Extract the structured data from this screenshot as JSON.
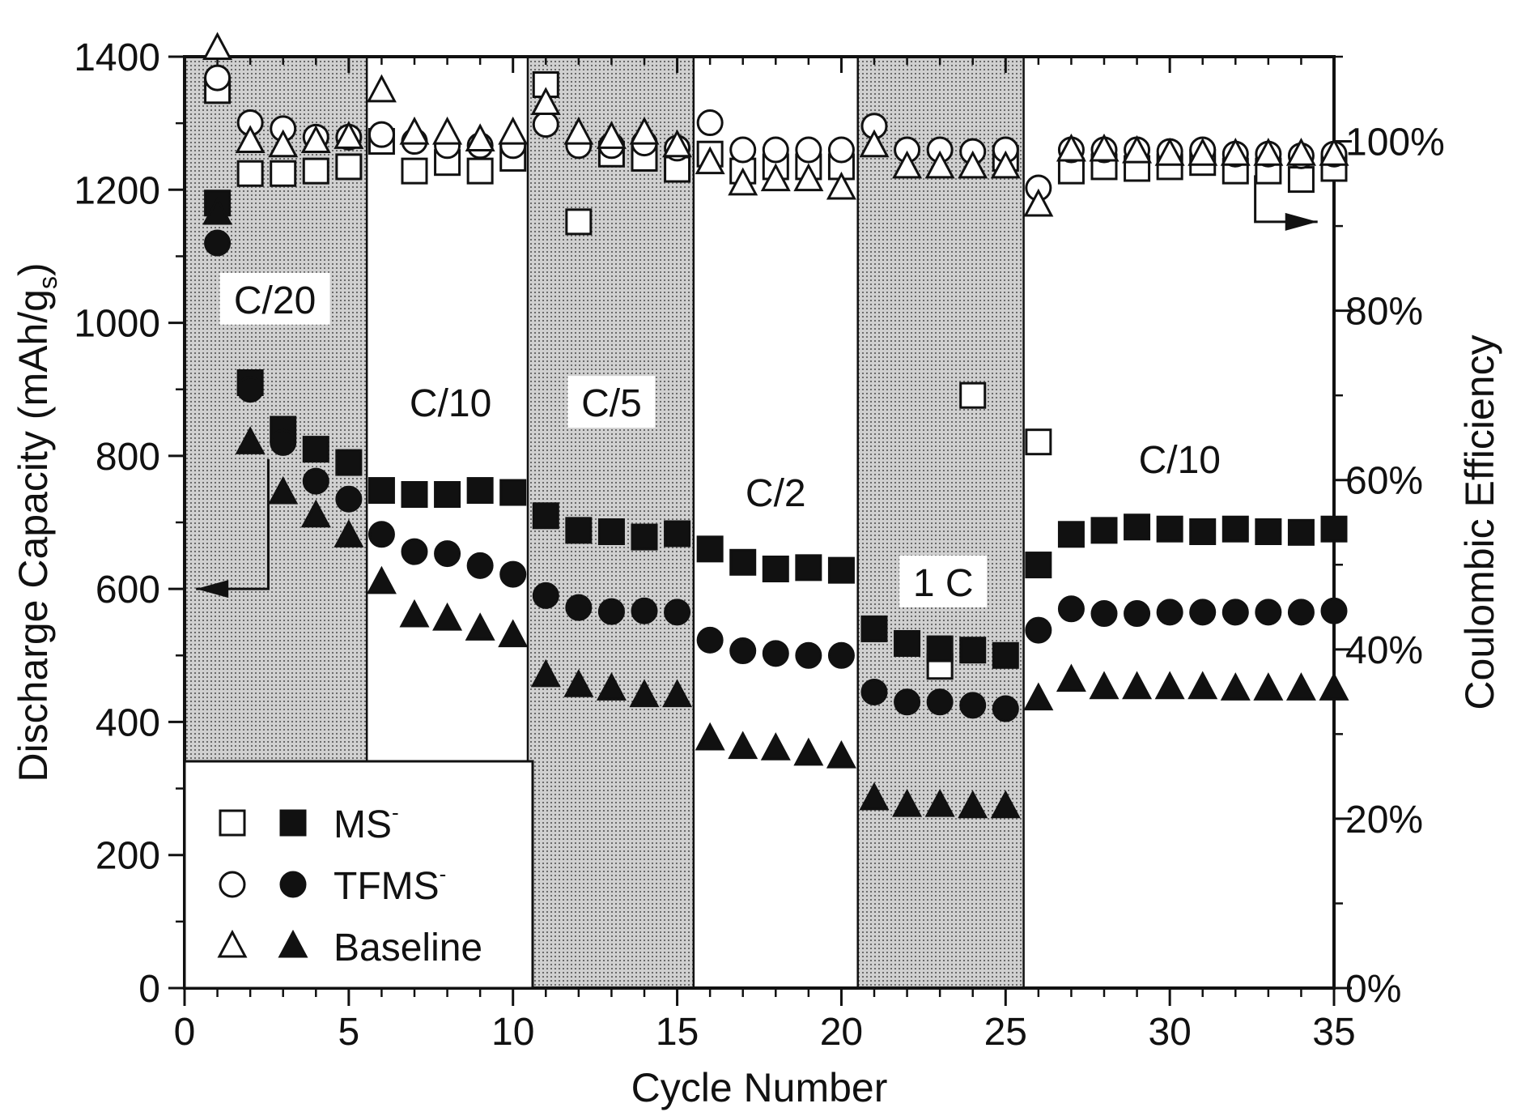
{
  "chart_data": {
    "type": "scatter",
    "title": "",
    "xlabel": "Cycle Number",
    "ylabel": "Discharge Capacity (mAh/g_s)",
    "ylabel_parts": {
      "main": "Discharge Capacity (mAh/g",
      "sub": "s",
      "end": ")"
    },
    "y2label": "Coulombic Efficiency",
    "xlim": [
      0,
      35
    ],
    "ylim": [
      0,
      1400
    ],
    "y2lim": [
      0,
      110
    ],
    "xticks": [
      0,
      5,
      10,
      15,
      20,
      25,
      30,
      35
    ],
    "yticks": [
      0,
      200,
      400,
      600,
      800,
      1000,
      1200,
      1400
    ],
    "y2ticks": [
      0,
      20,
      40,
      60,
      80,
      100
    ],
    "xtick_labels": [
      "0",
      "5",
      "10",
      "15",
      "20",
      "25",
      "30",
      "35"
    ],
    "ytick_labels": [
      "0",
      "200",
      "400",
      "600",
      "800",
      "1000",
      "1200",
      "1400"
    ],
    "y2tick_labels": [
      "0%",
      "20%",
      "40%",
      "60%",
      "80%",
      "100%"
    ],
    "rate_regions": [
      {
        "label": "C/20",
        "x0": 0,
        "x1": 5.55,
        "shaded": true,
        "label_x": 2.75,
        "label_y": 1035
      },
      {
        "label": "C/10",
        "x0": 5.55,
        "x1": 10.45,
        "shaded": false,
        "label_x": 8.1,
        "label_y": 880
      },
      {
        "label": "C/5",
        "x0": 10.45,
        "x1": 15.5,
        "shaded": true,
        "label_x": 13,
        "label_y": 880
      },
      {
        "label": "C/2",
        "x0": 15.5,
        "x1": 20.5,
        "shaded": false,
        "label_x": 18,
        "label_y": 745
      },
      {
        "label": "1 C",
        "x0": 20.5,
        "x1": 25.55,
        "shaded": true,
        "label_x": 23.1,
        "label_y": 610
      },
      {
        "label": "C/10",
        "x0": 25.55,
        "x1": 35,
        "shaded": false,
        "label_x": 30.3,
        "label_y": 795
      }
    ],
    "series": [
      {
        "name": "MS",
        "superscript": "-",
        "marker": "square",
        "capacity": {
          "x": [
            1,
            2,
            3,
            4,
            5,
            6,
            7,
            8,
            9,
            10,
            11,
            12,
            13,
            14,
            15,
            16,
            17,
            18,
            19,
            20,
            21,
            22,
            23,
            24,
            25,
            26,
            27,
            28,
            29,
            30,
            31,
            32,
            33,
            34,
            35
          ],
          "y": [
            1180,
            910,
            840,
            810,
            790,
            748,
            742,
            742,
            748,
            745,
            710,
            688,
            686,
            678,
            683,
            660,
            640,
            630,
            632,
            628,
            540,
            518,
            510,
            508,
            500,
            636,
            682,
            688,
            693,
            690,
            686,
            690,
            686,
            685,
            690
          ]
        },
        "efficiency": {
          "x": [
            1,
            2,
            3,
            4,
            5,
            6,
            7,
            8,
            9,
            10,
            11,
            12,
            13,
            14,
            15,
            16,
            17,
            18,
            19,
            20,
            23,
            24,
            25,
            26,
            27,
            28,
            29,
            30,
            31,
            32,
            33,
            34,
            35
          ],
          "y": [
            106,
            96.2,
            96.2,
            96.5,
            97,
            100,
            96.5,
            97.5,
            96.5,
            98,
            106.7,
            90.5,
            98.5,
            98,
            96.7,
            98.5,
            96.5,
            97,
            97,
            97,
            38,
            70,
            98,
            64.5,
            96.5,
            97,
            96.8,
            97,
            97.5,
            96.5,
            96.5,
            95.5,
            96.8
          ]
        }
      },
      {
        "name": "TFMS",
        "superscript": "-",
        "marker": "circle",
        "capacity": {
          "x": [
            1,
            2,
            3,
            4,
            5,
            6,
            7,
            8,
            9,
            10,
            11,
            12,
            13,
            14,
            15,
            16,
            17,
            18,
            19,
            20,
            21,
            22,
            23,
            24,
            25,
            26,
            27,
            28,
            29,
            30,
            31,
            32,
            33,
            34,
            35
          ],
          "y": [
            1120,
            900,
            820,
            762,
            735,
            682,
            656,
            653,
            635,
            622,
            590,
            572,
            566,
            567,
            565,
            523,
            507,
            503,
            500,
            500,
            445,
            430,
            430,
            425,
            420,
            538,
            570,
            563,
            563,
            565,
            565,
            565,
            565,
            565,
            567
          ]
        },
        "efficiency": {
          "x": [
            1,
            2,
            3,
            4,
            5,
            6,
            7,
            8,
            9,
            10,
            11,
            12,
            13,
            14,
            15,
            16,
            17,
            18,
            19,
            20,
            21,
            22,
            23,
            24,
            25,
            26,
            27,
            28,
            29,
            30,
            31,
            32,
            33,
            34,
            35
          ],
          "y": [
            107.5,
            102.2,
            101.5,
            100.5,
            100.5,
            100.8,
            100,
            99.5,
            99.5,
            99.5,
            102,
            99.5,
            99.5,
            99.8,
            99.2,
            102.2,
            99,
            99,
            99,
            99,
            101.8,
            99,
            99,
            98.8,
            99,
            94.5,
            99,
            99,
            99,
            98.8,
            99,
            98.5,
            98.5,
            98.3,
            98.5
          ]
        }
      },
      {
        "name": "Baseline",
        "superscript": "",
        "marker": "triangle",
        "capacity": {
          "x": [
            1,
            2,
            3,
            4,
            5,
            6,
            7,
            8,
            9,
            10,
            11,
            12,
            13,
            14,
            15,
            16,
            17,
            18,
            19,
            20,
            21,
            22,
            23,
            24,
            25,
            26,
            27,
            28,
            29,
            30,
            31,
            32,
            33,
            34,
            35
          ],
          "y": [
            1165,
            820,
            745,
            710,
            680,
            610,
            560,
            555,
            540,
            530,
            470,
            455,
            450,
            440,
            440,
            375,
            362,
            360,
            352,
            348,
            285,
            275,
            275,
            273,
            273,
            435,
            463,
            452,
            452,
            452,
            452,
            450,
            450,
            450,
            450
          ]
        },
        "efficiency": {
          "x": [
            1,
            2,
            3,
            4,
            5,
            6,
            7,
            8,
            9,
            10,
            11,
            12,
            13,
            14,
            15,
            16,
            17,
            18,
            19,
            20,
            21,
            22,
            23,
            24,
            25,
            26,
            27,
            28,
            29,
            30,
            31,
            32,
            33,
            34,
            35
          ],
          "y": [
            111,
            100,
            99.5,
            100,
            100.5,
            106,
            101,
            101,
            100.2,
            101,
            104.5,
            101,
            100.5,
            101,
            99.5,
            97.5,
            95,
            95.5,
            95.5,
            94.5,
            99.5,
            97,
            97,
            97,
            97,
            92.5,
            99,
            99,
            98.8,
            98.5,
            98.5,
            98.5,
            98.5,
            98.5,
            98.5
          ]
        }
      }
    ],
    "annotations": [
      {
        "text": "arrow pointing to left axis (capacity)",
        "points": [
          [
            2.55,
            795
          ],
          [
            2.55,
            600
          ],
          [
            0.35,
            600
          ]
        ]
      },
      {
        "text": "arrow pointing to right axis (efficiency)",
        "points": [
          [
            32.6,
            96
          ],
          [
            32.6,
            90.5
          ],
          [
            34.5,
            90.5
          ]
        ]
      }
    ],
    "legend": {
      "position": "bottom-left",
      "entries": [
        {
          "label": "MS",
          "superscript": "-",
          "marker": "square"
        },
        {
          "label": "TFMS",
          "superscript": "-",
          "marker": "circle"
        },
        {
          "label": "Baseline",
          "superscript": "",
          "marker": "triangle"
        }
      ]
    }
  }
}
